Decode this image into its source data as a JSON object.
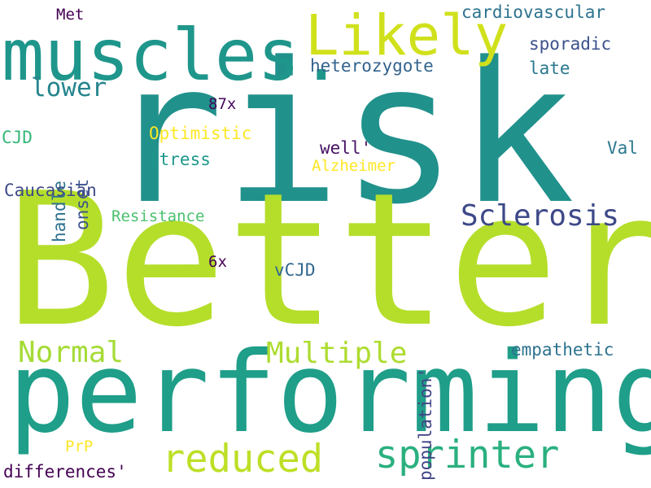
{
  "words": [
    {
      "text": "risk",
      "color": "#21918c"
    },
    {
      "text": "Better",
      "color": "#b5de2b"
    },
    {
      "text": "performing",
      "color": "#1f9e89"
    },
    {
      "text": "muscles.",
      "color": "#1f968b"
    },
    {
      "text": "Likely",
      "color": "#d0e11c"
    },
    {
      "text": "sprinter",
      "color": "#2ab07f"
    },
    {
      "text": "reduced",
      "color": "#bddf26"
    },
    {
      "text": "Multiple",
      "color": "#addc30"
    },
    {
      "text": "Normal",
      "color": "#a5db36"
    },
    {
      "text": "Sclerosis",
      "color": "#3e4989"
    },
    {
      "text": "lower",
      "color": "#25858e"
    },
    {
      "text": "cardiovascular",
      "color": "#2c728e"
    },
    {
      "text": "heterozygote",
      "color": "#33638d"
    },
    {
      "text": "sporadic",
      "color": "#3b528b"
    },
    {
      "text": "late",
      "color": "#2a788e"
    },
    {
      "text": "Met",
      "color": "#440154"
    },
    {
      "text": "87x",
      "color": "#46085c"
    },
    {
      "text": "Optimistic",
      "color": "#fde725"
    },
    {
      "text": "stress",
      "color": "#1f988b"
    },
    {
      "text": "well'",
      "color": "#471164"
    },
    {
      "text": "Alzheimer",
      "color": "#fde725"
    },
    {
      "text": "CJD",
      "color": "#35b779"
    },
    {
      "text": "handle",
      "color": "#2d708e"
    },
    {
      "text": "onset",
      "color": "#3b528b"
    },
    {
      "text": "Val",
      "color": "#2a788e"
    },
    {
      "text": "Caucasian",
      "color": "#3e4a89"
    },
    {
      "text": "Resistance",
      "color": "#4ac16d"
    },
    {
      "text": "6x",
      "color": "#440154"
    },
    {
      "text": "vCJD",
      "color": "#31688e"
    },
    {
      "text": "population'",
      "color": "#414487"
    },
    {
      "text": "empathetic",
      "color": "#2c728e"
    },
    {
      "text": "PrP",
      "color": "#fde725"
    },
    {
      "text": "differences'",
      "color": "#440154"
    }
  ]
}
